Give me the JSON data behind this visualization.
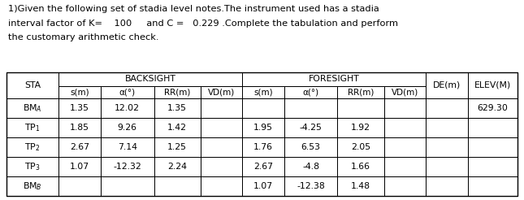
{
  "title_line1": "1)Given the following set of stadia level notes.The instrument used has a stadia",
  "title_line2": "interval factor of K=    100     and C =   0.229 .Complete the tabulation and perform",
  "title_line3": "the customary arithmetic check.",
  "header_row1_col1": "STA",
  "header_row1_backsight": "BACKSIGHT",
  "header_row1_foresight": "FORESIGHT",
  "header_row1_de": "DE(m)",
  "header_row1_elev": "ELEV(M)",
  "header_row2": [
    "s(m)",
    "α(°)",
    "RR(m)",
    "VD(m)",
    "s(m)",
    "α(°)",
    "RR(m)",
    "VD(m)"
  ],
  "sta_labels": [
    "BM$_A$",
    "TP$_1$",
    "TP$_2$",
    "TP$_3$",
    "BM$_B$"
  ],
  "rows": [
    [
      "1.35",
      "12.02",
      "1.35",
      "",
      "",
      "",
      "",
      "",
      "",
      "629.30"
    ],
    [
      "1.85",
      "9.26",
      "1.42",
      "",
      "1.95",
      "-4.25",
      "1.92",
      "",
      "",
      ""
    ],
    [
      "2.67",
      "7.14",
      "1.25",
      "",
      "1.76",
      "6.53",
      "2.05",
      "",
      "",
      ""
    ],
    [
      "1.07",
      "-12.32",
      "2.24",
      "",
      "2.67",
      "-4.8",
      "1.66",
      "",
      "",
      ""
    ],
    [
      "",
      "",
      "",
      "",
      "1.07",
      "-12.38",
      "1.48",
      "",
      "",
      ""
    ]
  ],
  "bg_color": "#ffffff",
  "text_color": "#000000",
  "font_size_title": 8.2,
  "font_size_table": 7.8
}
